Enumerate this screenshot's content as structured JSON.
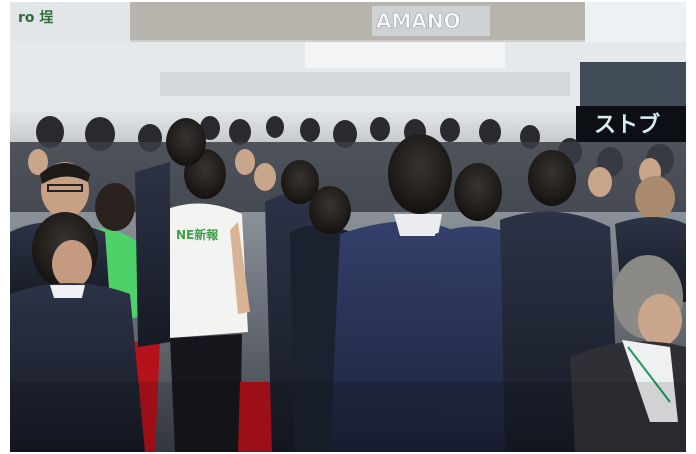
{
  "photo": {
    "signs": {
      "brand_sign": "AMANO",
      "led_board": "ストブ",
      "top_left_sign": "ro 埕",
      "shirt_logo": "NE新報"
    },
    "colors": {
      "ceiling": "#b9b8b2",
      "booth_white": "#e8ecee",
      "suit_dark": "#1f2430",
      "suit_navy": "#262c44",
      "carpet_red": "#b3121a",
      "green_jacket": "#4fd16a",
      "led_text": "#d9ecf4"
    }
  }
}
